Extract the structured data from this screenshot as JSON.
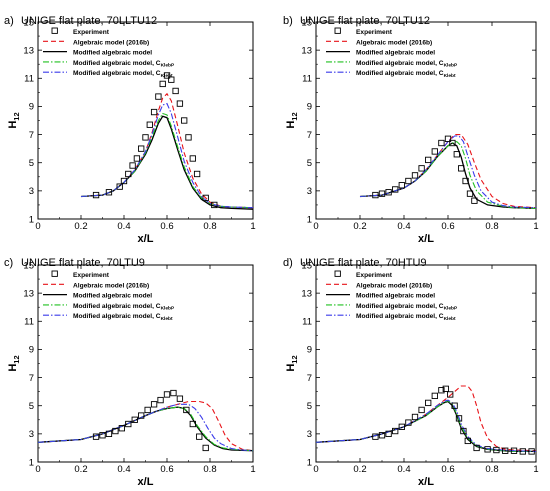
{
  "figure": {
    "xlabel": "x/L",
    "ylabel_main": "H",
    "ylabel_sub": "12"
  },
  "colors": {
    "experiment": "#000000",
    "algebraic_2016b": "#e8141a",
    "modified": "#000000",
    "kleb_p": "#22c022",
    "kleb_t": "#3b3bea"
  },
  "chart_data": [
    {
      "type": "line",
      "panel": "a)",
      "title": "UNIGE flat plate, 70LLTU12",
      "xlim": [
        0,
        1
      ],
      "ylim": [
        1,
        15
      ],
      "xticks": [
        "0",
        "0.2",
        "0.4",
        "0.6",
        "0.8",
        "1"
      ],
      "yticks": [
        "1",
        "3",
        "5",
        "7",
        "9",
        "11",
        "13",
        "15"
      ],
      "legend": [
        "Experiment",
        "Algebraic model (2016b)",
        "Modified algebraic model",
        "Modified algebraic model, C",
        "Modified algebraic model, C"
      ],
      "legend_subs": [
        "",
        "",
        "",
        "KlebP",
        "Klebt"
      ],
      "experiment": {
        "x": [
          0.27,
          0.33,
          0.38,
          0.4,
          0.42,
          0.44,
          0.46,
          0.48,
          0.5,
          0.52,
          0.54,
          0.56,
          0.58,
          0.6,
          0.62,
          0.64,
          0.66,
          0.68,
          0.7,
          0.72,
          0.74,
          0.78,
          0.82
        ],
        "y": [
          2.7,
          2.9,
          3.3,
          3.7,
          4.2,
          4.8,
          5.3,
          6.0,
          6.8,
          7.7,
          8.6,
          9.7,
          10.6,
          11.2,
          10.9,
          10.1,
          9.2,
          8.0,
          6.8,
          5.3,
          4.2,
          2.5,
          2.0
        ]
      },
      "series": [
        {
          "key": "algebraic_2016b",
          "x": [
            0.2,
            0.3,
            0.35,
            0.4,
            0.45,
            0.5,
            0.53,
            0.56,
            0.58,
            0.6,
            0.62,
            0.65,
            0.68,
            0.72,
            0.76,
            0.8,
            0.85,
            0.9,
            1.0
          ],
          "y": [
            2.6,
            2.7,
            3.0,
            3.6,
            4.5,
            5.8,
            7.1,
            8.7,
            9.6,
            9.9,
            9.4,
            7.6,
            5.7,
            3.9,
            2.8,
            2.2,
            1.9,
            1.85,
            1.8
          ]
        },
        {
          "key": "modified",
          "x": [
            0.2,
            0.3,
            0.35,
            0.4,
            0.45,
            0.5,
            0.53,
            0.56,
            0.58,
            0.6,
            0.62,
            0.65,
            0.68,
            0.72,
            0.76,
            0.8,
            0.85,
            0.9,
            1.0
          ],
          "y": [
            2.6,
            2.7,
            3.0,
            3.6,
            4.4,
            5.6,
            6.6,
            7.8,
            8.3,
            8.2,
            7.4,
            5.9,
            4.5,
            3.2,
            2.4,
            2.0,
            1.8,
            1.75,
            1.7
          ]
        },
        {
          "key": "kleb_p",
          "x": [
            0.2,
            0.3,
            0.35,
            0.4,
            0.45,
            0.5,
            0.53,
            0.56,
            0.58,
            0.6,
            0.62,
            0.65,
            0.68,
            0.72,
            0.76,
            0.8,
            0.85,
            0.9,
            1.0
          ],
          "y": [
            2.6,
            2.7,
            3.0,
            3.6,
            4.4,
            5.7,
            6.8,
            8.0,
            8.5,
            8.4,
            7.6,
            6.1,
            4.7,
            3.3,
            2.5,
            2.1,
            1.9,
            1.85,
            1.8
          ]
        },
        {
          "key": "kleb_t",
          "x": [
            0.2,
            0.3,
            0.35,
            0.4,
            0.45,
            0.5,
            0.53,
            0.56,
            0.58,
            0.6,
            0.62,
            0.65,
            0.68,
            0.72,
            0.76,
            0.8,
            0.85,
            0.9,
            1.0
          ],
          "y": [
            2.6,
            2.7,
            3.0,
            3.6,
            4.5,
            5.8,
            7.0,
            8.4,
            9.1,
            9.2,
            8.5,
            6.8,
            5.1,
            3.6,
            2.6,
            2.1,
            1.9,
            1.85,
            1.8
          ]
        }
      ]
    },
    {
      "type": "line",
      "panel": "b)",
      "title": "UNIGE flat plate, 70LTU12",
      "xlim": [
        0,
        1
      ],
      "ylim": [
        1,
        15
      ],
      "xticks": [
        "0",
        "0.2",
        "0.4",
        "0.6",
        "0.8",
        "1"
      ],
      "yticks": [
        "1",
        "3",
        "5",
        "7",
        "9",
        "11",
        "13",
        "15"
      ],
      "legend": [
        "Experiment",
        "Algebraic model (2016b)",
        "Modified algebraic model",
        "Modified algebraic model, C",
        "Modified algebraic model, C"
      ],
      "legend_subs": [
        "",
        "",
        "",
        "KlebP",
        "Klebt"
      ],
      "experiment": {
        "x": [
          0.27,
          0.3,
          0.33,
          0.36,
          0.39,
          0.42,
          0.45,
          0.48,
          0.51,
          0.54,
          0.57,
          0.6,
          0.62,
          0.64,
          0.66,
          0.68,
          0.7,
          0.72
        ],
        "y": [
          2.7,
          2.8,
          2.9,
          3.1,
          3.4,
          3.7,
          4.1,
          4.6,
          5.2,
          5.8,
          6.4,
          6.7,
          6.4,
          5.6,
          4.6,
          3.7,
          2.8,
          2.3
        ]
      },
      "series": [
        {
          "key": "algebraic_2016b",
          "x": [
            0.2,
            0.3,
            0.4,
            0.45,
            0.5,
            0.55,
            0.6,
            0.63,
            0.66,
            0.69,
            0.72,
            0.75,
            0.8,
            0.85,
            0.9,
            1.0
          ],
          "y": [
            2.6,
            2.7,
            3.2,
            3.7,
            4.5,
            5.5,
            6.5,
            7.0,
            7.0,
            6.3,
            5.0,
            3.8,
            2.6,
            2.1,
            1.9,
            1.8
          ]
        },
        {
          "key": "modified",
          "x": [
            0.2,
            0.3,
            0.4,
            0.45,
            0.5,
            0.55,
            0.6,
            0.62,
            0.64,
            0.66,
            0.68,
            0.7,
            0.73,
            0.78,
            0.85,
            0.9,
            1.0
          ],
          "y": [
            2.6,
            2.7,
            3.2,
            3.7,
            4.4,
            5.4,
            6.2,
            6.4,
            6.2,
            5.4,
            4.2,
            3.2,
            2.4,
            2.0,
            1.85,
            1.8,
            1.75
          ]
        },
        {
          "key": "kleb_p",
          "x": [
            0.2,
            0.3,
            0.4,
            0.45,
            0.5,
            0.55,
            0.6,
            0.62,
            0.64,
            0.66,
            0.68,
            0.7,
            0.73,
            0.78,
            0.85,
            0.9,
            1.0
          ],
          "y": [
            2.6,
            2.7,
            3.2,
            3.7,
            4.4,
            5.4,
            6.2,
            6.4,
            6.5,
            6.2,
            5.3,
            4.1,
            3.0,
            2.2,
            1.9,
            1.8,
            1.75
          ]
        },
        {
          "key": "kleb_t",
          "x": [
            0.2,
            0.3,
            0.4,
            0.45,
            0.5,
            0.55,
            0.6,
            0.63,
            0.65,
            0.67,
            0.69,
            0.72,
            0.75,
            0.8,
            0.85,
            0.9,
            1.0
          ],
          "y": [
            2.6,
            2.7,
            3.2,
            3.7,
            4.5,
            5.5,
            6.5,
            6.9,
            6.9,
            6.5,
            5.5,
            4.1,
            3.0,
            2.2,
            1.95,
            1.85,
            1.8
          ]
        }
      ]
    },
    {
      "type": "line",
      "panel": "c)",
      "title": "UNIGE flat plate, 70LTU9",
      "xlim": [
        0,
        1
      ],
      "ylim": [
        1,
        15
      ],
      "xticks": [
        "0",
        "0.2",
        "0.4",
        "0.6",
        "0.8",
        "1"
      ],
      "yticks": [
        "1",
        "3",
        "5",
        "7",
        "9",
        "11",
        "13",
        "15"
      ],
      "legend": [
        "Experiment",
        "Algebraic model (2016b)",
        "Modified algebraic model",
        "Modified algebraic model, C",
        "Modified algebraic model, C"
      ],
      "legend_subs": [
        "",
        "",
        "",
        "KlebP",
        "Klebt"
      ],
      "experiment": {
        "x": [
          0.27,
          0.3,
          0.33,
          0.36,
          0.39,
          0.42,
          0.45,
          0.48,
          0.51,
          0.54,
          0.57,
          0.6,
          0.63,
          0.66,
          0.69,
          0.72,
          0.75,
          0.78
        ],
        "y": [
          2.8,
          2.9,
          3.0,
          3.2,
          3.4,
          3.7,
          4.0,
          4.3,
          4.7,
          5.1,
          5.4,
          5.8,
          5.9,
          5.5,
          4.7,
          3.7,
          2.8,
          2.0
        ]
      },
      "series": [
        {
          "key": "algebraic_2016b",
          "x": [
            0.0,
            0.2,
            0.3,
            0.4,
            0.5,
            0.55,
            0.6,
            0.65,
            0.7,
            0.75,
            0.78,
            0.81,
            0.84,
            0.87,
            0.9,
            0.95,
            1.0
          ],
          "y": [
            2.4,
            2.6,
            3.0,
            3.6,
            4.3,
            4.6,
            4.9,
            5.1,
            5.3,
            5.3,
            5.2,
            4.8,
            3.9,
            2.9,
            2.3,
            1.9,
            1.8
          ]
        },
        {
          "key": "modified",
          "x": [
            0.0,
            0.2,
            0.3,
            0.4,
            0.5,
            0.55,
            0.6,
            0.65,
            0.68,
            0.71,
            0.74,
            0.78,
            0.82,
            0.86,
            0.9,
            1.0
          ],
          "y": [
            2.4,
            2.6,
            3.0,
            3.6,
            4.3,
            4.6,
            4.8,
            4.9,
            4.8,
            4.3,
            3.5,
            2.7,
            2.2,
            1.95,
            1.85,
            1.8
          ]
        },
        {
          "key": "kleb_p",
          "x": [
            0.0,
            0.2,
            0.3,
            0.4,
            0.5,
            0.55,
            0.6,
            0.65,
            0.68,
            0.71,
            0.74,
            0.78,
            0.82,
            0.86,
            0.9,
            1.0
          ],
          "y": [
            2.4,
            2.6,
            3.0,
            3.6,
            4.3,
            4.6,
            4.8,
            4.9,
            4.8,
            4.4,
            3.6,
            2.8,
            2.25,
            2.0,
            1.9,
            1.8
          ]
        },
        {
          "key": "kleb_t",
          "x": [
            0.0,
            0.2,
            0.3,
            0.4,
            0.5,
            0.55,
            0.6,
            0.65,
            0.7,
            0.73,
            0.76,
            0.79,
            0.82,
            0.85,
            0.9,
            0.95,
            1.0
          ],
          "y": [
            2.4,
            2.6,
            3.0,
            3.6,
            4.3,
            4.6,
            4.9,
            5.1,
            5.1,
            4.8,
            4.2,
            3.4,
            2.7,
            2.3,
            1.95,
            1.85,
            1.8
          ]
        }
      ]
    },
    {
      "type": "line",
      "panel": "d)",
      "title": "UNIGE flat plate, 70HTU9",
      "xlim": [
        0,
        1
      ],
      "ylim": [
        1,
        15
      ],
      "xticks": [
        "0",
        "0.2",
        "0.4",
        "0.6",
        "0.8",
        "1"
      ],
      "yticks": [
        "1",
        "3",
        "5",
        "7",
        "9",
        "11",
        "13",
        "15"
      ],
      "legend": [
        "Experiment",
        "Algebraic model (2016b)",
        "Modified algebraic model",
        "Modified algebraic model, C",
        "Modified algebraic model, C"
      ],
      "legend_subs": [
        "",
        "",
        "",
        "KlebP",
        "Klebt"
      ],
      "experiment": {
        "x": [
          0.27,
          0.3,
          0.33,
          0.36,
          0.39,
          0.42,
          0.45,
          0.48,
          0.51,
          0.54,
          0.57,
          0.59,
          0.61,
          0.63,
          0.65,
          0.67,
          0.69,
          0.73,
          0.78,
          0.82,
          0.86,
          0.9,
          0.94,
          0.98
        ],
        "y": [
          2.8,
          2.9,
          3.0,
          3.2,
          3.5,
          3.8,
          4.2,
          4.7,
          5.2,
          5.7,
          6.1,
          6.2,
          5.8,
          5.0,
          4.1,
          3.2,
          2.5,
          2.0,
          1.9,
          1.85,
          1.8,
          1.8,
          1.75,
          1.75
        ]
      },
      "series": [
        {
          "key": "algebraic_2016b",
          "x": [
            0.0,
            0.2,
            0.3,
            0.4,
            0.5,
            0.55,
            0.6,
            0.63,
            0.66,
            0.69,
            0.71,
            0.73,
            0.75,
            0.78,
            0.82,
            0.86,
            0.9,
            1.0
          ],
          "y": [
            2.4,
            2.6,
            3.0,
            3.5,
            4.4,
            5.0,
            5.6,
            6.0,
            6.4,
            6.4,
            6.0,
            5.0,
            3.8,
            2.7,
            2.1,
            1.9,
            1.85,
            1.8
          ]
        },
        {
          "key": "modified",
          "x": [
            0.0,
            0.2,
            0.3,
            0.4,
            0.5,
            0.55,
            0.58,
            0.6,
            0.62,
            0.64,
            0.66,
            0.69,
            0.73,
            0.78,
            0.85,
            0.9,
            1.0
          ],
          "y": [
            2.4,
            2.6,
            3.0,
            3.5,
            4.3,
            4.9,
            5.2,
            5.3,
            5.0,
            4.3,
            3.4,
            2.6,
            2.1,
            1.9,
            1.8,
            1.75,
            1.75
          ]
        },
        {
          "key": "kleb_p",
          "x": [
            0.0,
            0.2,
            0.3,
            0.4,
            0.5,
            0.55,
            0.58,
            0.6,
            0.62,
            0.64,
            0.66,
            0.69,
            0.73,
            0.78,
            0.85,
            0.9,
            1.0
          ],
          "y": [
            2.4,
            2.6,
            3.0,
            3.5,
            4.3,
            4.9,
            5.2,
            5.35,
            5.1,
            4.4,
            3.5,
            2.7,
            2.15,
            1.9,
            1.8,
            1.75,
            1.75
          ]
        },
        {
          "key": "kleb_t",
          "x": [
            0.0,
            0.2,
            0.3,
            0.4,
            0.5,
            0.55,
            0.58,
            0.6,
            0.62,
            0.64,
            0.66,
            0.69,
            0.73,
            0.78,
            0.85,
            0.9,
            1.0
          ],
          "y": [
            2.4,
            2.6,
            3.0,
            3.5,
            4.4,
            5.0,
            5.3,
            5.4,
            5.2,
            4.6,
            3.7,
            2.8,
            2.2,
            1.95,
            1.85,
            1.8,
            1.75
          ]
        }
      ]
    }
  ]
}
